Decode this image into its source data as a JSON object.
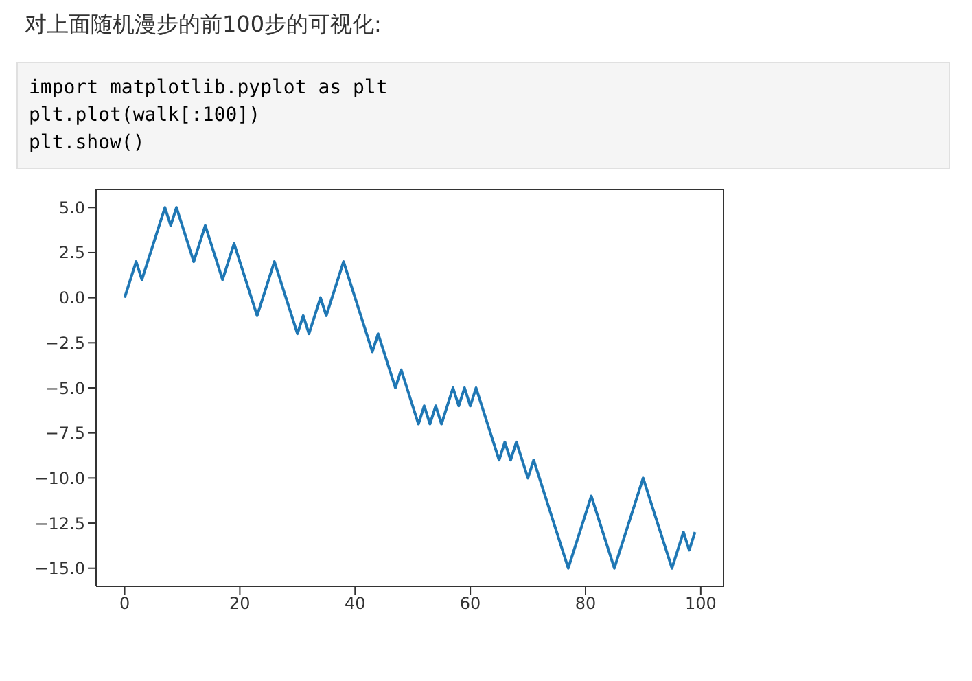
{
  "chart_data": {
    "type": "line",
    "title": "对上面随机漫步的前100步的可视化:",
    "annotations": [
      "import matplotlib.pyplot as plt",
      "plt.plot(walk[:100])",
      "plt.show()"
    ],
    "x": [
      0,
      1,
      2,
      3,
      4,
      5,
      6,
      7,
      8,
      9,
      10,
      11,
      12,
      13,
      14,
      15,
      16,
      17,
      18,
      19,
      20,
      21,
      22,
      23,
      24,
      25,
      26,
      27,
      28,
      29,
      30,
      31,
      32,
      33,
      34,
      35,
      36,
      37,
      38,
      39,
      40,
      41,
      42,
      43,
      44,
      45,
      46,
      47,
      48,
      49,
      50,
      51,
      52,
      53,
      54,
      55,
      56,
      57,
      58,
      59,
      60,
      61,
      62,
      63,
      64,
      65,
      66,
      67,
      68,
      69,
      70,
      71,
      72,
      73,
      74,
      75,
      76,
      77,
      78,
      79,
      80,
      81,
      82,
      83,
      84,
      85,
      86,
      87,
      88,
      89,
      90,
      91,
      92,
      93,
      94,
      95,
      96,
      97,
      98,
      99
    ],
    "series": [
      {
        "color": "#1f77b4",
        "values": [
          0,
          1,
          2,
          1,
          2,
          3,
          4,
          5,
          4,
          5,
          4,
          3,
          2,
          3,
          4,
          3,
          2,
          1,
          2,
          3,
          2,
          1,
          0,
          -1,
          0,
          1,
          2,
          1,
          0,
          -1,
          -2,
          -1,
          -2,
          -1,
          0,
          -1,
          0,
          1,
          2,
          1,
          0,
          -1,
          -2,
          -3,
          -2,
          -3,
          -4,
          -5,
          -4,
          -5,
          -6,
          -7,
          -6,
          -7,
          -6,
          -7,
          -6,
          -5,
          -6,
          -5,
          -6,
          -5,
          -6,
          -7,
          -8,
          -9,
          -8,
          -9,
          -8,
          -9,
          -10,
          -9,
          -10,
          -11,
          -12,
          -13,
          -14,
          -15,
          -14,
          -13,
          -12,
          -11,
          -12,
          -13,
          -14,
          -15,
          -14,
          -13,
          -12,
          -11,
          -10,
          -11,
          -12,
          -13,
          -14,
          -15,
          -14,
          -13,
          -14,
          -13
        ]
      }
    ],
    "xlim": [
      -4.95,
      103.95
    ],
    "xticks": [
      0,
      20,
      40,
      60,
      80,
      100
    ],
    "ylim": [
      -16,
      6
    ],
    "yticks": [
      {
        "value": 5,
        "label": "5.0"
      },
      {
        "value": 2.5,
        "label": "2.5"
      },
      {
        "value": 0,
        "label": "0.0"
      },
      {
        "value": -2.5,
        "label": "−2.5"
      },
      {
        "value": -5,
        "label": "−5.0"
      },
      {
        "value": -7.5,
        "label": "−7.5"
      },
      {
        "value": -10,
        "label": "−10.0"
      },
      {
        "value": -12.5,
        "label": "−12.5"
      },
      {
        "value": -15,
        "label": "−15.0"
      }
    ],
    "grid": false,
    "marker": "none",
    "line_style": "solid"
  }
}
